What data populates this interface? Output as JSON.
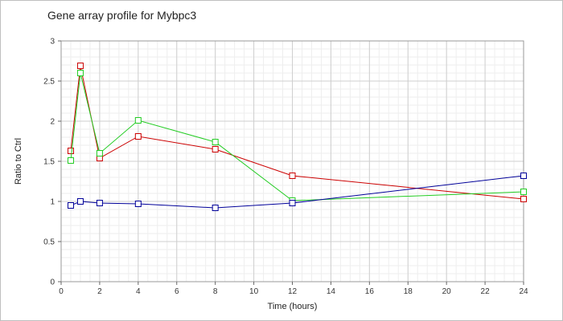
{
  "chart_data": {
    "type": "line",
    "title": "Gene array profile for Mybpc3",
    "xlabel": "Time (hours)",
    "ylabel": "Ratio to Ctrl",
    "xlim": [
      0,
      24
    ],
    "ylim": [
      0,
      3
    ],
    "x_ticks": [
      0,
      2,
      4,
      6,
      8,
      10,
      12,
      14,
      16,
      18,
      20,
      22,
      24
    ],
    "y_ticks": [
      0,
      0.5,
      1,
      1.5,
      2,
      2.5,
      3
    ],
    "y_tick_labels": [
      "0",
      "0.5",
      "1",
      "1.5",
      "2",
      "2.5",
      "3"
    ],
    "grid": true,
    "minor_grid": true,
    "marker": "square",
    "series": [
      {
        "color": "#cc0000",
        "points": [
          [
            0.5,
            1.63
          ],
          [
            1,
            2.69
          ],
          [
            2,
            1.54
          ],
          [
            4,
            1.81
          ],
          [
            8,
            1.65
          ],
          [
            12,
            1.32
          ],
          [
            24,
            1.03
          ]
        ]
      },
      {
        "color": "#22cc22",
        "points": [
          [
            0.5,
            1.51
          ],
          [
            1,
            2.6
          ],
          [
            2,
            1.6
          ],
          [
            4,
            2.01
          ],
          [
            8,
            1.74
          ],
          [
            12,
            1.01
          ],
          [
            24,
            1.12
          ]
        ]
      },
      {
        "color": "#000099",
        "points": [
          [
            0.5,
            0.95
          ],
          [
            1,
            1.0
          ],
          [
            2,
            0.98
          ],
          [
            4,
            0.97
          ],
          [
            8,
            0.92
          ],
          [
            12,
            0.98
          ],
          [
            24,
            1.32
          ]
        ]
      }
    ]
  }
}
